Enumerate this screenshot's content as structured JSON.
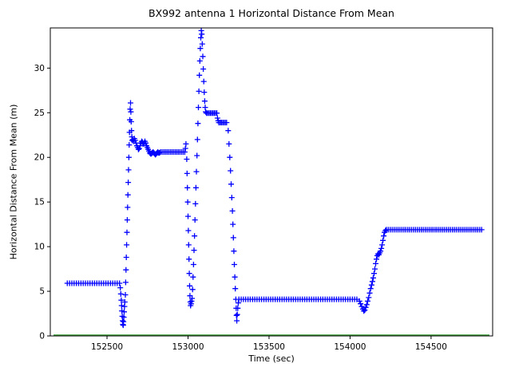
{
  "chart_data": {
    "type": "scatter",
    "title": "BX992 antenna 1 Horizontal Distance From Mean",
    "xlabel": "Time (sec)",
    "ylabel": "Horizontal Distance From Mean (m)",
    "xlim": [
      152150,
      154880
    ],
    "ylim": [
      0,
      34.5
    ],
    "xticks": [
      152500,
      153000,
      153500,
      154000,
      154500
    ],
    "yticks": [
      0,
      5,
      10,
      15,
      20,
      25,
      30
    ],
    "marker": "plus",
    "grid": false,
    "legend": false,
    "frame_color": "#000000",
    "zero_line": {
      "y": 0.1,
      "x0": 152170,
      "x1": 154860,
      "color": "#008000"
    },
    "series": [
      {
        "name": "horizontal-distance",
        "color": "#0000ff",
        "segments": [
          {
            "kind": "run",
            "x0": 152255,
            "x1": 152578,
            "step": 14,
            "y": 5.9
          },
          {
            "kind": "pts",
            "pts": [
              [
                152582,
                5.4
              ],
              [
                152585,
                4.7
              ],
              [
                152588,
                4.0
              ],
              [
                152590,
                3.4
              ],
              [
                152592,
                2.8
              ],
              [
                152594,
                2.2
              ],
              [
                152596,
                1.7
              ],
              [
                152598,
                1.3
              ],
              [
                152600,
                1.2
              ],
              [
                152602,
                1.6
              ],
              [
                152604,
                2.1
              ],
              [
                152606,
                2.7
              ],
              [
                152608,
                3.3
              ],
              [
                152610,
                3.8
              ]
            ]
          },
          {
            "kind": "pts",
            "pts": [
              [
                152613,
                4.6
              ],
              [
                152615,
                6.0
              ],
              [
                152617,
                7.4
              ],
              [
                152619,
                8.8
              ],
              [
                152621,
                10.2
              ],
              [
                152623,
                11.6
              ],
              [
                152625,
                13.0
              ],
              [
                152627,
                14.4
              ],
              [
                152629,
                15.8
              ],
              [
                152631,
                17.2
              ],
              [
                152633,
                18.6
              ],
              [
                152635,
                20.0
              ],
              [
                152637,
                21.4
              ],
              [
                152639,
                22.8
              ],
              [
                152641,
                24.2
              ],
              [
                152643,
                25.4
              ],
              [
                152645,
                26.1
              ],
              [
                152647,
                25.1
              ],
              [
                152649,
                24.0
              ],
              [
                152651,
                23.0
              ],
              [
                152653,
                22.3
              ],
              [
                152655,
                21.9
              ]
            ]
          },
          {
            "kind": "pts",
            "pts": [
              [
                152659,
                22.0
              ],
              [
                152664,
                21.8
              ],
              [
                152669,
                22.1
              ],
              [
                152674,
                21.9
              ],
              [
                152679,
                21.6
              ],
              [
                152684,
                21.3
              ],
              [
                152689,
                21.1
              ],
              [
                152694,
                20.9
              ],
              [
                152699,
                21.0
              ],
              [
                152704,
                21.3
              ],
              [
                152709,
                21.6
              ],
              [
                152714,
                21.8
              ],
              [
                152719,
                21.7
              ],
              [
                152724,
                21.5
              ],
              [
                152729,
                21.6
              ],
              [
                152734,
                21.8
              ],
              [
                152739,
                21.6
              ],
              [
                152744,
                21.3
              ],
              [
                152749,
                21.1
              ],
              [
                152754,
                20.9
              ],
              [
                152759,
                20.7
              ],
              [
                152764,
                20.5
              ],
              [
                152769,
                20.4
              ],
              [
                152774,
                20.4
              ],
              [
                152779,
                20.5
              ],
              [
                152784,
                20.6
              ],
              [
                152789,
                20.5
              ],
              [
                152794,
                20.4
              ],
              [
                152799,
                20.3
              ],
              [
                152804,
                20.4
              ],
              [
                152809,
                20.5
              ],
              [
                152814,
                20.6
              ],
              [
                152819,
                20.5
              ],
              [
                152824,
                20.5
              ]
            ]
          },
          {
            "kind": "run",
            "x0": 152830,
            "x1": 152982,
            "step": 10,
            "y": 20.6
          },
          {
            "kind": "pts",
            "pts": [
              [
                152984,
                21.0
              ],
              [
                152987,
                21.5
              ]
            ]
          },
          {
            "kind": "pts",
            "pts": [
              [
                152992,
                19.8
              ],
              [
                152994,
                18.2
              ],
              [
                152996,
                16.6
              ],
              [
                152998,
                15.0
              ],
              [
                153000,
                13.4
              ],
              [
                153002,
                11.8
              ],
              [
                153004,
                10.2
              ],
              [
                153006,
                8.6
              ],
              [
                153008,
                7.0
              ],
              [
                153010,
                5.6
              ],
              [
                153012,
                4.5
              ],
              [
                153014,
                3.8
              ],
              [
                153016,
                3.4
              ],
              [
                153019,
                3.6
              ],
              [
                153022,
                3.9
              ],
              [
                153025,
                4.2
              ]
            ]
          },
          {
            "kind": "pts",
            "pts": [
              [
                153028,
                5.2
              ],
              [
                153031,
                6.6
              ],
              [
                153034,
                8.0
              ],
              [
                153037,
                9.6
              ],
              [
                153040,
                11.2
              ],
              [
                153043,
                13.0
              ],
              [
                153046,
                14.8
              ],
              [
                153049,
                16.6
              ],
              [
                153052,
                18.4
              ],
              [
                153055,
                20.2
              ],
              [
                153058,
                22.0
              ],
              [
                153061,
                23.8
              ],
              [
                153064,
                25.6
              ],
              [
                153067,
                27.4
              ],
              [
                153070,
                29.2
              ],
              [
                153073,
                30.8
              ],
              [
                153076,
                32.2
              ],
              [
                153079,
                33.4
              ],
              [
                153082,
                34.2
              ],
              [
                153085,
                33.8
              ],
              [
                153088,
                32.7
              ],
              [
                153091,
                31.3
              ],
              [
                153094,
                29.9
              ],
              [
                153097,
                28.5
              ],
              [
                153100,
                27.3
              ],
              [
                153103,
                26.3
              ],
              [
                153106,
                25.6
              ],
              [
                153109,
                25.1
              ]
            ]
          },
          {
            "kind": "run",
            "x0": 153114,
            "x1": 153178,
            "step": 8,
            "y": 24.95
          },
          {
            "kind": "pts",
            "pts": [
              [
                153182,
                24.4
              ],
              [
                153186,
                24.1
              ]
            ]
          },
          {
            "kind": "run",
            "x0": 153190,
            "x1": 153242,
            "step": 8,
            "y": 23.9
          },
          {
            "kind": "pts",
            "pts": [
              [
                153248,
                23.0
              ],
              [
                153253,
                21.5
              ],
              [
                153258,
                20.0
              ],
              [
                153262,
                18.5
              ],
              [
                153266,
                17.0
              ],
              [
                153270,
                15.5
              ],
              [
                153274,
                14.0
              ],
              [
                153277,
                12.5
              ],
              [
                153280,
                11.0
              ],
              [
                153283,
                9.5
              ],
              [
                153286,
                8.0
              ],
              [
                153289,
                6.6
              ],
              [
                153292,
                5.3
              ],
              [
                153295,
                4.1
              ],
              [
                153297,
                3.1
              ],
              [
                153299,
                2.3
              ],
              [
                153301,
                1.7
              ],
              [
                153304,
                2.4
              ],
              [
                153307,
                3.1
              ],
              [
                153310,
                3.7
              ]
            ]
          },
          {
            "kind": "run",
            "x0": 153314,
            "x1": 154052,
            "step": 14,
            "y": 4.1
          },
          {
            "kind": "pts",
            "pts": [
              [
                154058,
                3.9
              ],
              [
                154065,
                3.6
              ],
              [
                154072,
                3.3
              ],
              [
                154079,
                3.0
              ],
              [
                154085,
                2.8
              ],
              [
                154091,
                2.9
              ],
              [
                154097,
                3.2
              ],
              [
                154103,
                3.5
              ],
              [
                154109,
                3.9
              ],
              [
                154115,
                4.3
              ],
              [
                154121,
                4.8
              ],
              [
                154127,
                5.3
              ]
            ]
          },
          {
            "kind": "pts",
            "pts": [
              [
                154133,
                5.7
              ],
              [
                154138,
                6.1
              ],
              [
                154143,
                6.5
              ],
              [
                154148,
                7.0
              ],
              [
                154153,
                7.5
              ],
              [
                154158,
                8.1
              ],
              [
                154163,
                8.6
              ],
              [
                154168,
                9.0
              ],
              [
                154173,
                9.2
              ],
              [
                154178,
                9.1
              ],
              [
                154183,
                9.3
              ],
              [
                154188,
                9.5
              ],
              [
                154193,
                9.8
              ],
              [
                154198,
                10.2
              ],
              [
                154203,
                10.7
              ],
              [
                154208,
                11.2
              ],
              [
                154213,
                11.6
              ],
              [
                154218,
                11.8
              ]
            ]
          },
          {
            "kind": "run",
            "x0": 154224,
            "x1": 154818,
            "step": 12,
            "y": 11.9
          }
        ]
      }
    ]
  }
}
